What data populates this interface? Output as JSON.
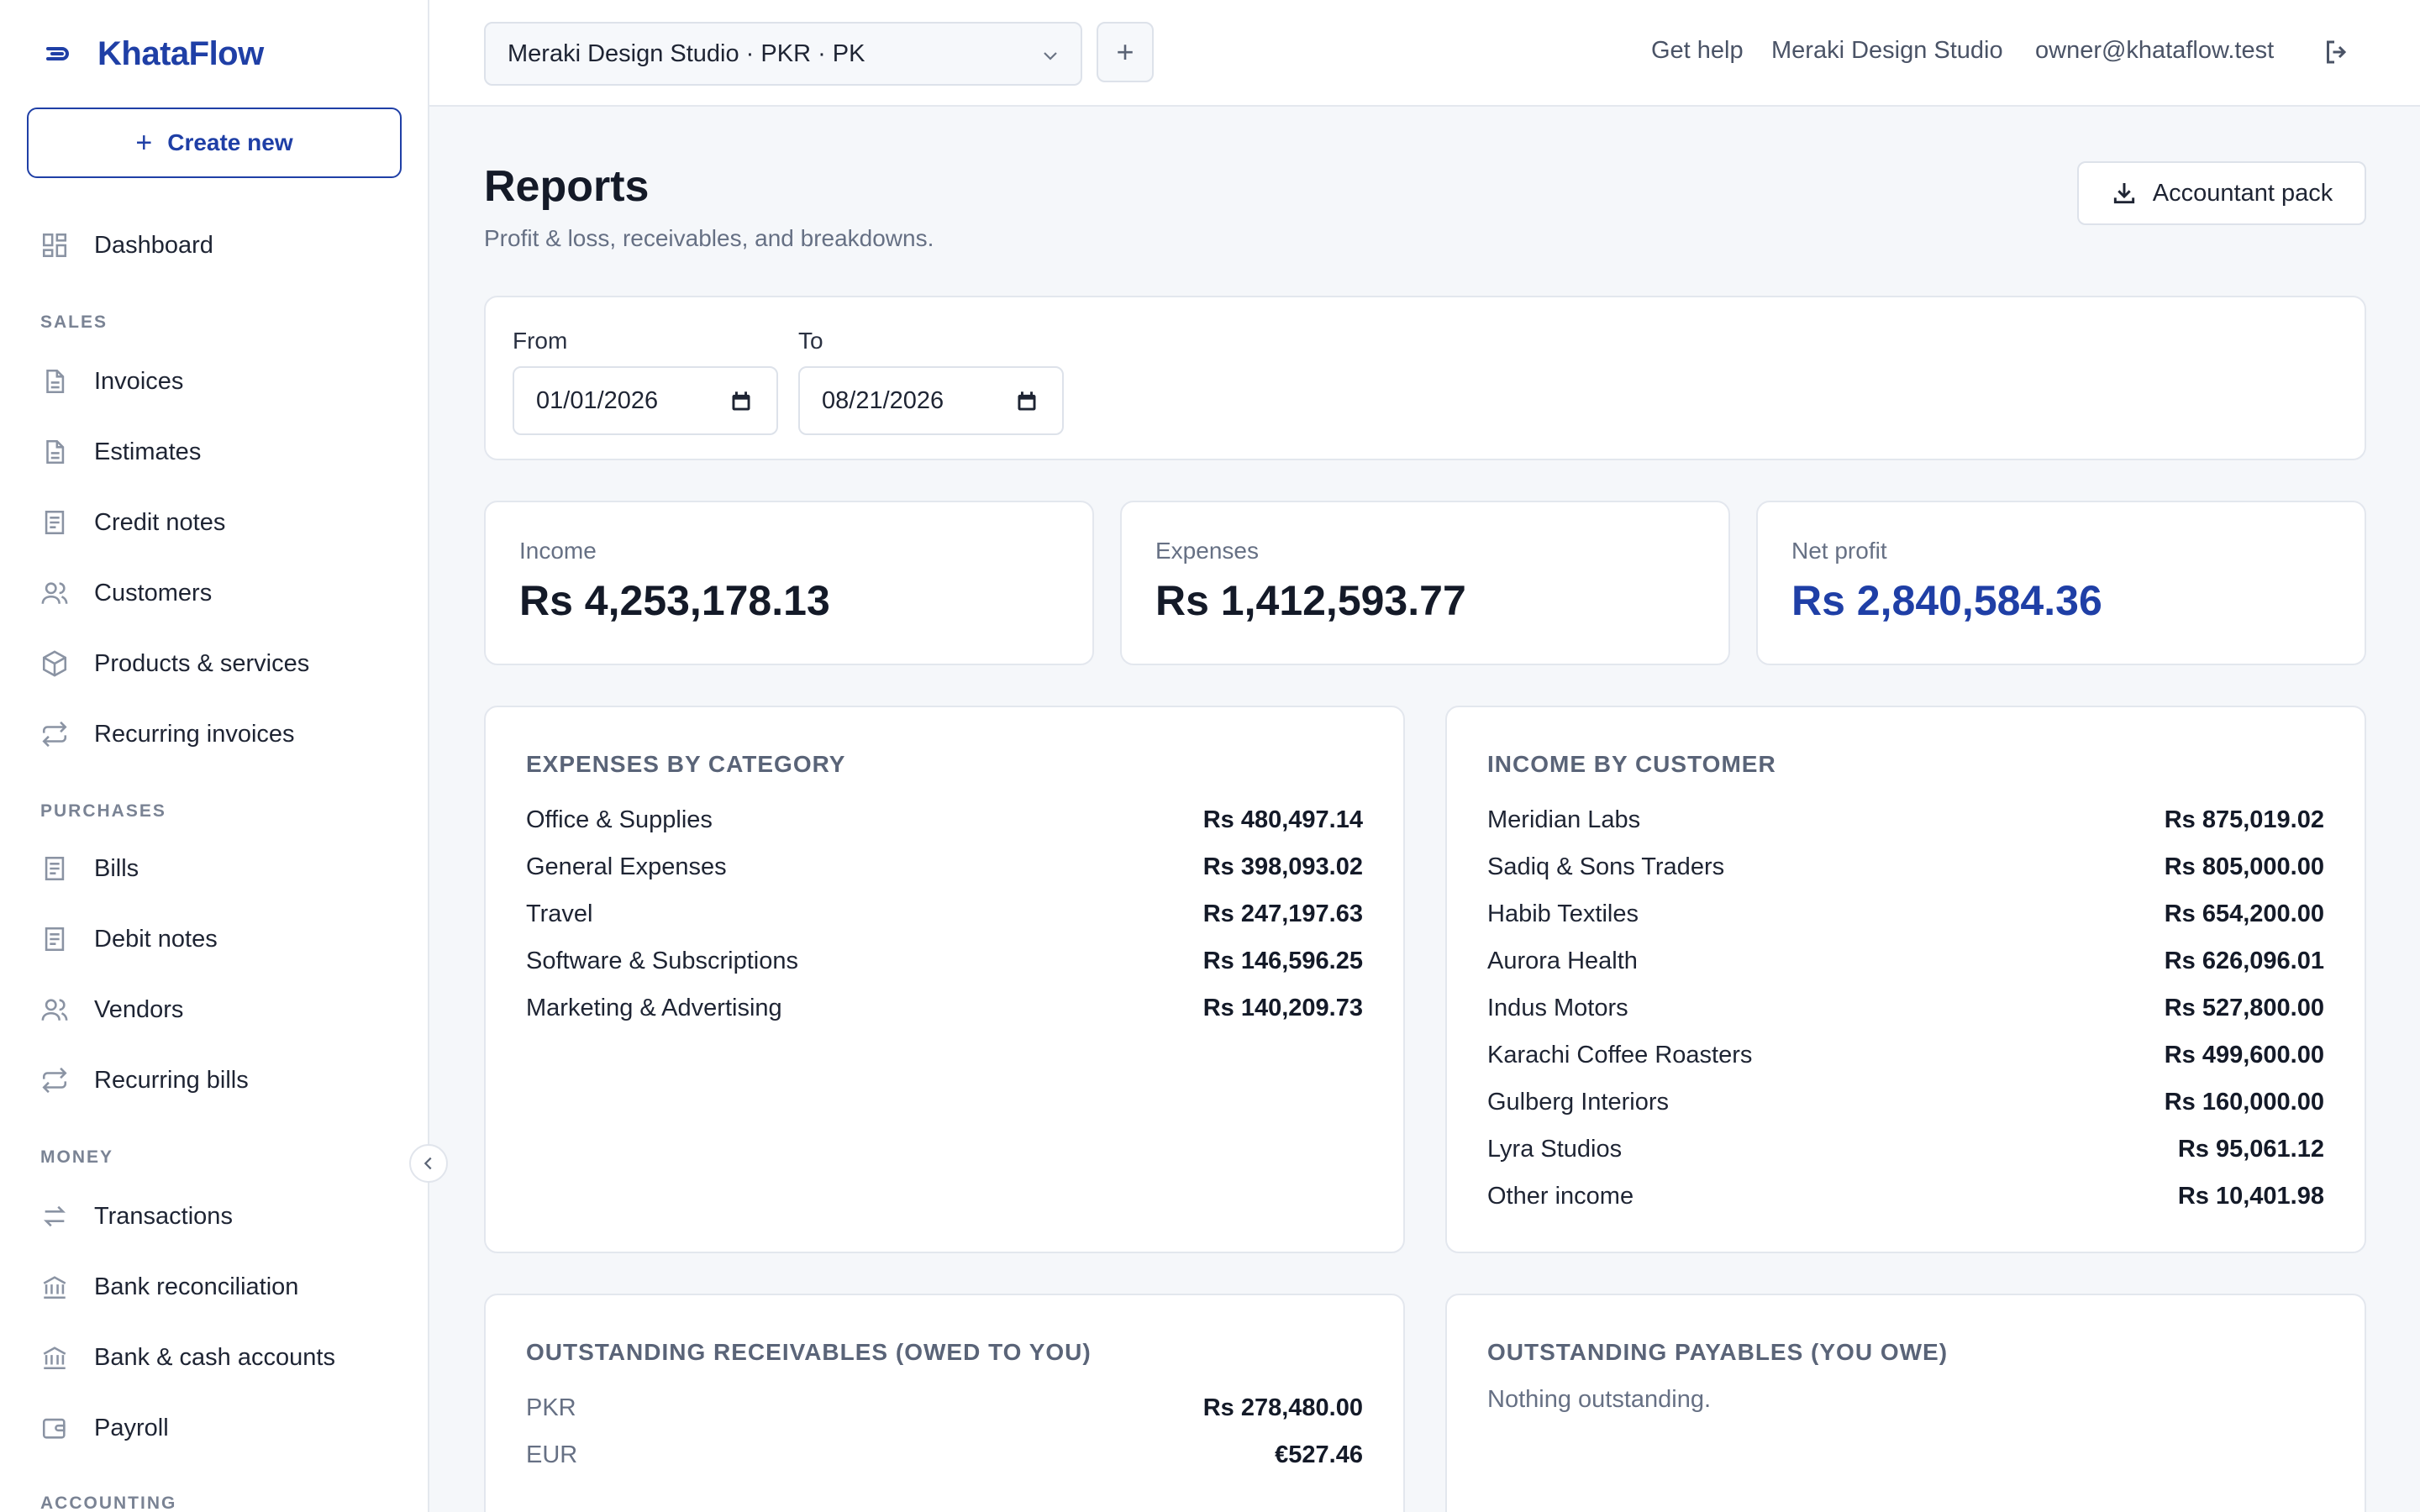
{
  "brand": {
    "name": "KhataFlow"
  },
  "sidebar": {
    "create_label": "Create new",
    "dashboard": "Dashboard",
    "sections": {
      "sales": "SALES",
      "purchases": "PURCHASES",
      "money": "MONEY",
      "accounting": "ACCOUNTING"
    },
    "sales_items": [
      "Invoices",
      "Estimates",
      "Credit notes",
      "Customers",
      "Products & services",
      "Recurring invoices"
    ],
    "purchase_items": [
      "Bills",
      "Debit notes",
      "Vendors",
      "Recurring bills"
    ],
    "money_items": [
      "Transactions",
      "Bank reconciliation",
      "Bank & cash accounts",
      "Payroll"
    ]
  },
  "topbar": {
    "org_select": "Meraki Design Studio · PKR · PK",
    "add_label": "+",
    "help": "Get help",
    "org_name": "Meraki Design Studio",
    "email": "owner@khataflow.test"
  },
  "page": {
    "title": "Reports",
    "subtitle": "Profit & loss, receivables, and breakdowns.",
    "accountant_pack": "Accountant pack"
  },
  "filters": {
    "from_label": "From",
    "from_value": "01/01/2026",
    "to_label": "To",
    "to_value": "08/21/2026"
  },
  "stats": {
    "income": {
      "label": "Income",
      "value": "Rs 4,253,178.13"
    },
    "expenses": {
      "label": "Expenses",
      "value": "Rs 1,412,593.77"
    },
    "net_profit": {
      "label": "Net profit",
      "value": "Rs 2,840,584.36"
    }
  },
  "expenses_by_category": {
    "title": "EXPENSES BY CATEGORY",
    "rows": [
      {
        "name": "Office & Supplies",
        "amount": "Rs 480,497.14"
      },
      {
        "name": "General Expenses",
        "amount": "Rs 398,093.02"
      },
      {
        "name": "Travel",
        "amount": "Rs 247,197.63"
      },
      {
        "name": "Software & Subscriptions",
        "amount": "Rs 146,596.25"
      },
      {
        "name": "Marketing & Advertising",
        "amount": "Rs 140,209.73"
      }
    ]
  },
  "income_by_customer": {
    "title": "INCOME BY CUSTOMER",
    "rows": [
      {
        "name": "Meridian Labs",
        "amount": "Rs 875,019.02"
      },
      {
        "name": "Sadiq & Sons Traders",
        "amount": "Rs 805,000.00"
      },
      {
        "name": "Habib Textiles",
        "amount": "Rs 654,200.00"
      },
      {
        "name": "Aurora Health",
        "amount": "Rs 626,096.01"
      },
      {
        "name": "Indus Motors",
        "amount": "Rs 527,800.00"
      },
      {
        "name": "Karachi Coffee Roasters",
        "amount": "Rs 499,600.00"
      },
      {
        "name": "Gulberg Interiors",
        "amount": "Rs 160,000.00"
      },
      {
        "name": "Lyra Studios",
        "amount": "Rs 95,061.12"
      },
      {
        "name": "Other income",
        "amount": "Rs 10,401.98"
      }
    ]
  },
  "receivables": {
    "title": "OUTSTANDING RECEIVABLES (OWED TO YOU)",
    "rows": [
      {
        "name": "PKR",
        "amount": "Rs 278,480.00"
      },
      {
        "name": "EUR",
        "amount": "€527.46"
      }
    ]
  },
  "payables": {
    "title": "OUTSTANDING PAYABLES (YOU OWE)",
    "empty": "Nothing outstanding."
  },
  "colors": {
    "accent": "#1f3fa6",
    "background": "#f5f7fa"
  }
}
